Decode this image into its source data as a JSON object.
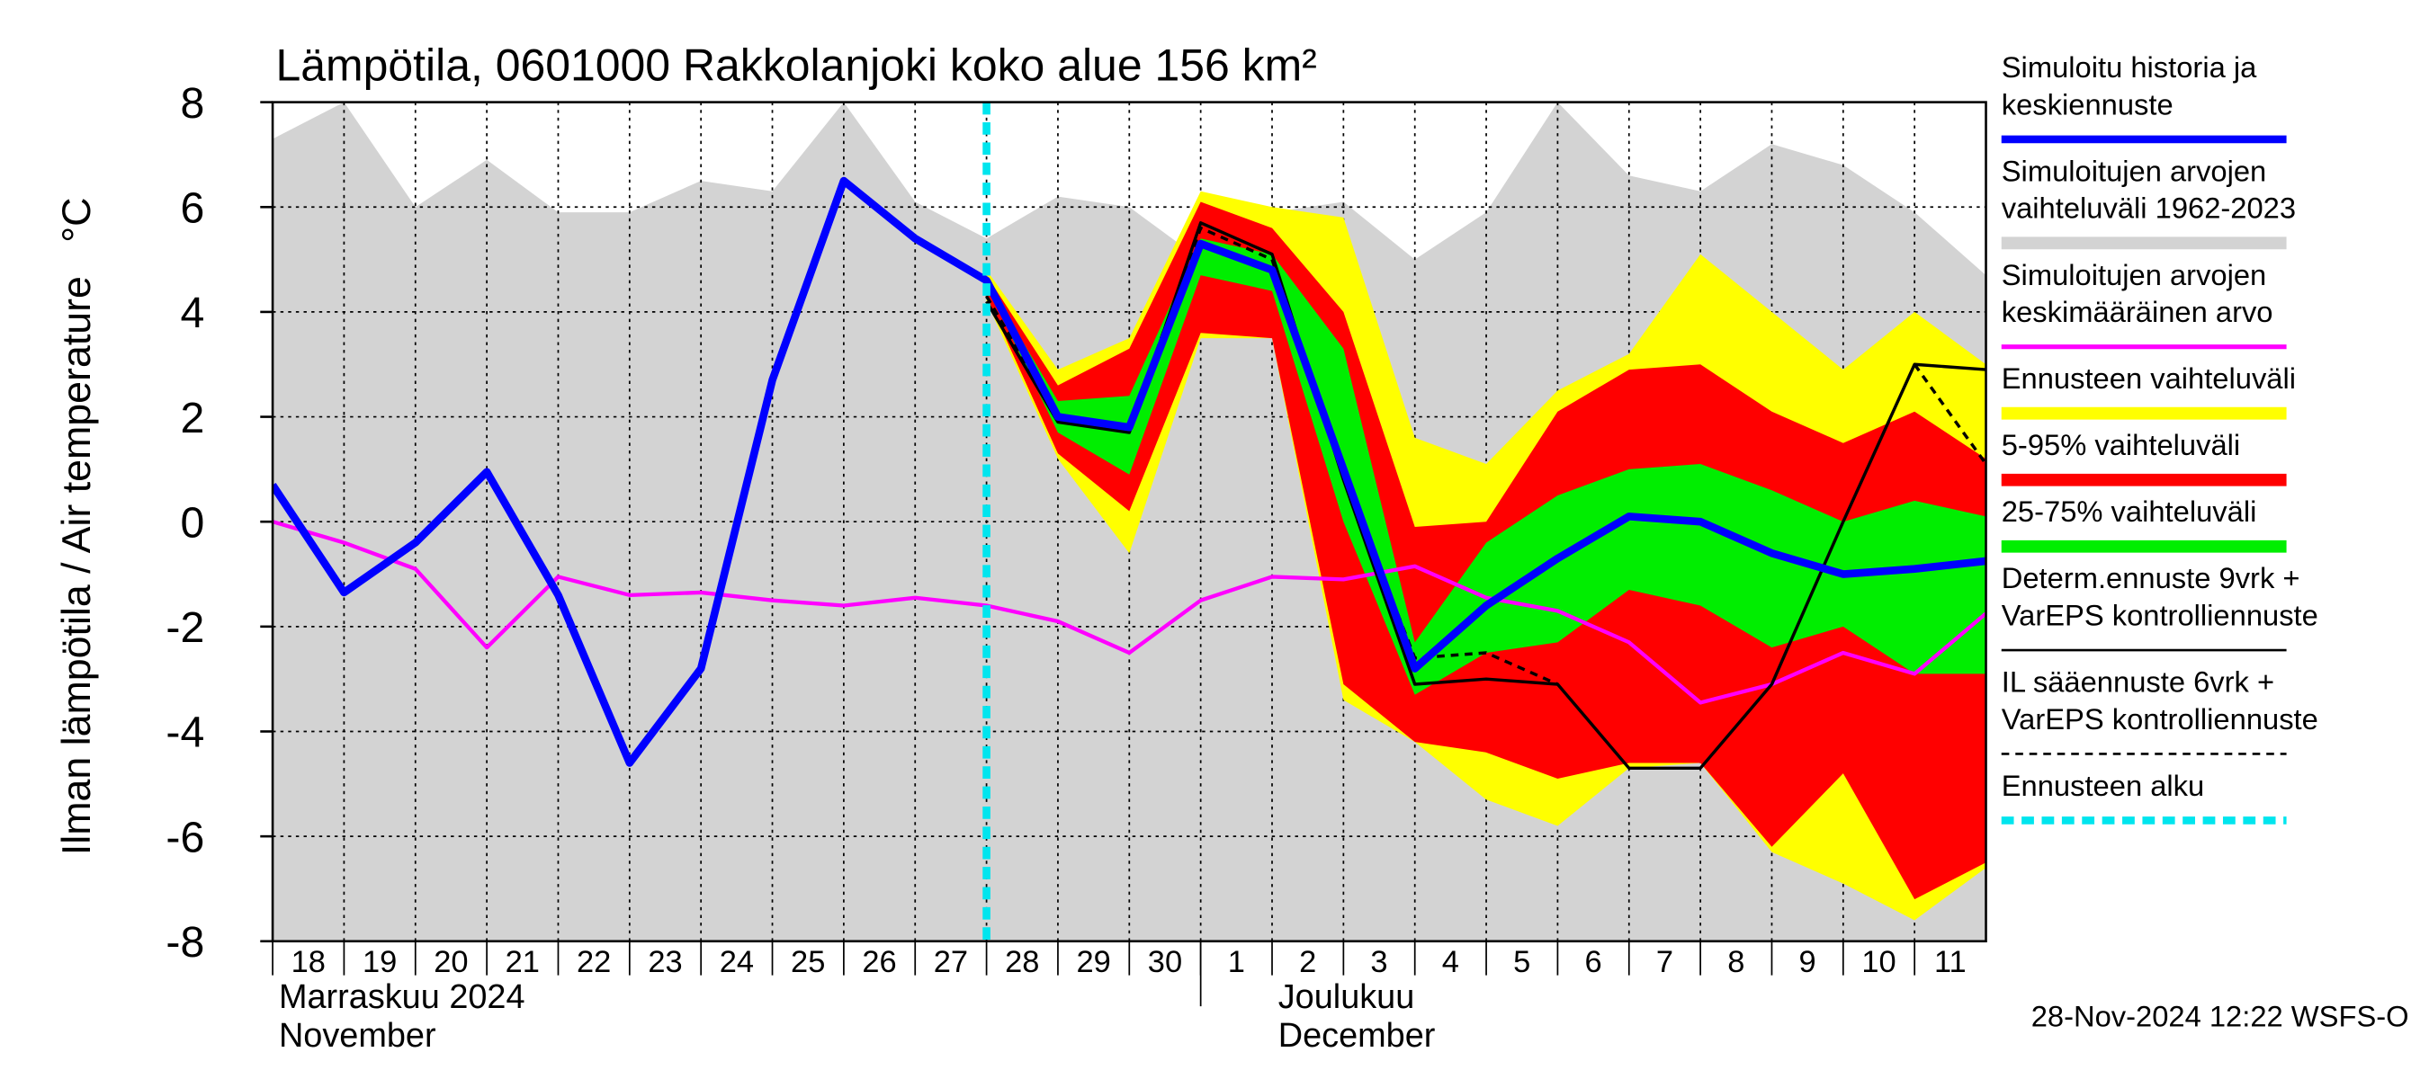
{
  "chart_data": {
    "type": "line",
    "title": "Lämpötila, 0601000 Rakkolanjoki koko alue 156 km²",
    "ylabel": "Ilman lämpötila / Air temperature   °C",
    "footer": "28-Nov-2024 12:22 WSFS-O",
    "ylim": [
      -8,
      8
    ],
    "yticks": [
      -8,
      -6,
      -4,
      -2,
      0,
      2,
      4,
      6,
      8
    ],
    "xlim": [
      "2024-11-18",
      "2024-12-12"
    ],
    "xticks": [
      {
        "value": "2024-11-18",
        "label": "18"
      },
      {
        "value": "2024-11-19",
        "label": "19"
      },
      {
        "value": "2024-11-20",
        "label": "20"
      },
      {
        "value": "2024-11-21",
        "label": "21"
      },
      {
        "value": "2024-11-22",
        "label": "22"
      },
      {
        "value": "2024-11-23",
        "label": "23"
      },
      {
        "value": "2024-11-24",
        "label": "24"
      },
      {
        "value": "2024-11-25",
        "label": "25"
      },
      {
        "value": "2024-11-26",
        "label": "26"
      },
      {
        "value": "2024-11-27",
        "label": "27"
      },
      {
        "value": "2024-11-28",
        "label": "28"
      },
      {
        "value": "2024-11-29",
        "label": "29"
      },
      {
        "value": "2024-11-30",
        "label": "30"
      },
      {
        "value": "2024-12-01",
        "label": "1"
      },
      {
        "value": "2024-12-02",
        "label": "2"
      },
      {
        "value": "2024-12-03",
        "label": "3"
      },
      {
        "value": "2024-12-04",
        "label": "4"
      },
      {
        "value": "2024-12-05",
        "label": "5"
      },
      {
        "value": "2024-12-06",
        "label": "6"
      },
      {
        "value": "2024-12-07",
        "label": "7"
      },
      {
        "value": "2024-12-08",
        "label": "8"
      },
      {
        "value": "2024-12-09",
        "label": "9"
      },
      {
        "value": "2024-12-10",
        "label": "10"
      },
      {
        "value": "2024-12-11",
        "label": "11"
      }
    ],
    "months": [
      {
        "start": "2024-11-18",
        "labels": [
          "Marraskuu 2024",
          "November"
        ]
      },
      {
        "start": "2024-12-01",
        "labels": [
          "Joulukuu",
          "December"
        ]
      }
    ],
    "grid": true,
    "x": [
      "2024-11-18",
      "2024-11-19",
      "2024-11-20",
      "2024-11-21",
      "2024-11-22",
      "2024-11-23",
      "2024-11-24",
      "2024-11-25",
      "2024-11-26",
      "2024-11-27",
      "2024-11-28",
      "2024-11-29",
      "2024-11-30",
      "2024-12-01",
      "2024-12-02",
      "2024-12-03",
      "2024-12-04",
      "2024-12-05",
      "2024-12-06",
      "2024-12-07",
      "2024-12-08",
      "2024-12-09",
      "2024-12-10",
      "2024-12-11",
      "2024-12-12"
    ],
    "series": [
      {
        "name": [
          "Simuloitu historia ja",
          "keskiennuste"
        ],
        "kind": "line",
        "color": "#0000ff",
        "width": 5,
        "values": [
          0.7,
          -1.35,
          -0.4,
          0.95,
          -1.4,
          -4.6,
          -2.8,
          2.7,
          6.5,
          5.4,
          4.6,
          2.0,
          1.8,
          5.3,
          4.8,
          1.0,
          -2.8,
          -1.6,
          -0.7,
          0.1,
          0.0,
          -0.6,
          -1.0,
          -0.9,
          -0.75
        ]
      },
      {
        "name": [
          "Simuloitujen arvojen",
          "vaihteluväli 1962-2023"
        ],
        "kind": "band",
        "color": "#d3d3d3",
        "upper": [
          7.3,
          8.0,
          6.0,
          6.9,
          5.9,
          5.9,
          6.5,
          6.3,
          8.0,
          6.1,
          5.4,
          6.2,
          6.0,
          5.0,
          5.9,
          6.1,
          5.0,
          5.9,
          8.0,
          6.6,
          6.3,
          7.2,
          6.8,
          5.9,
          4.7
        ],
        "lower": [
          -8,
          -8,
          -8,
          -8,
          -8,
          -8,
          -8,
          -8,
          -8,
          -8,
          -8,
          -8,
          -8,
          -8,
          -8,
          -8,
          -8,
          -8,
          -8,
          -8,
          -8,
          -8,
          -8,
          -8,
          -8
        ]
      },
      {
        "name": [
          "Simuloitujen arvojen",
          "keskimääräinen arvo"
        ],
        "kind": "line",
        "color": "#ff00ff",
        "width": 2.5,
        "values": [
          0.0,
          -0.4,
          -0.9,
          -2.4,
          -1.05,
          -1.4,
          -1.35,
          -1.5,
          -1.6,
          -1.45,
          -1.6,
          -1.9,
          -2.5,
          -1.5,
          -1.05,
          -1.1,
          -0.85,
          -1.45,
          -1.7,
          -2.3,
          -3.45,
          -3.1,
          -2.5,
          -2.9,
          -1.75
        ]
      },
      {
        "name": [
          "Ennusteen vaihteluväli"
        ],
        "kind": "band",
        "color": "#ffff00",
        "upper": [
          null,
          null,
          null,
          null,
          null,
          null,
          null,
          null,
          null,
          null,
          4.8,
          2.9,
          3.5,
          6.3,
          6.0,
          5.8,
          1.6,
          1.1,
          2.5,
          3.2,
          5.1,
          4.0,
          2.9,
          4.0,
          3.0
        ],
        "lower": [
          null,
          null,
          null,
          null,
          null,
          null,
          null,
          null,
          null,
          null,
          4.2,
          1.2,
          -0.6,
          3.5,
          3.5,
          -3.4,
          -4.2,
          -5.3,
          -5.8,
          -4.7,
          -4.6,
          -6.3,
          -6.9,
          -7.6,
          -6.6
        ]
      },
      {
        "name": [
          "5-95% vaihteluväli"
        ],
        "kind": "band",
        "color": "#ff0000",
        "upper": [
          null,
          null,
          null,
          null,
          null,
          null,
          null,
          null,
          null,
          null,
          4.7,
          2.6,
          3.3,
          6.1,
          5.6,
          4.0,
          -0.1,
          0.0,
          2.1,
          2.9,
          3.0,
          2.1,
          1.5,
          2.1,
          1.2
        ],
        "lower": [
          null,
          null,
          null,
          null,
          null,
          null,
          null,
          null,
          null,
          null,
          4.3,
          1.3,
          0.2,
          3.6,
          3.5,
          -3.1,
          -4.2,
          -4.4,
          -4.9,
          -4.6,
          -4.6,
          -6.2,
          -4.8,
          -7.2,
          -6.5
        ]
      },
      {
        "name": [
          "25-75% vaihteluväli"
        ],
        "kind": "band",
        "color": "#00ee00",
        "upper": [
          null,
          null,
          null,
          null,
          null,
          null,
          null,
          null,
          null,
          null,
          4.6,
          2.3,
          2.4,
          5.4,
          5.1,
          3.3,
          -2.3,
          -0.4,
          0.5,
          1.0,
          1.1,
          0.6,
          0.0,
          0.4,
          0.1
        ],
        "lower": [
          null,
          null,
          null,
          null,
          null,
          null,
          null,
          null,
          null,
          null,
          4.5,
          1.7,
          0.9,
          4.7,
          4.4,
          0.0,
          -3.3,
          -2.5,
          -2.3,
          -1.3,
          -1.6,
          -2.4,
          -2.0,
          -2.9,
          -2.9
        ]
      },
      {
        "name": [
          "Determ.ennuste 9vrk +",
          "VarEPS kontrolliennuste"
        ],
        "kind": "line",
        "color": "#000000",
        "width": 2,
        "values": [
          null,
          null,
          null,
          null,
          null,
          null,
          null,
          null,
          null,
          null,
          4.2,
          1.9,
          1.7,
          5.7,
          5.1,
          0.8,
          -3.1,
          -3.0,
          -3.1,
          -4.7,
          -4.7,
          -3.1,
          0.0,
          3.0,
          2.9
        ]
      },
      {
        "name": [
          "IL sääennuste 6vrk  +",
          "  VarEPS kontrolliennuste"
        ],
        "kind": "line",
        "color": "#000000",
        "width": 2,
        "dashed": true,
        "values": [
          null,
          null,
          null,
          null,
          null,
          null,
          null,
          null,
          null,
          null,
          4.3,
          2.0,
          1.8,
          5.6,
          5.0,
          0.9,
          -2.6,
          -2.5,
          -3.1,
          null,
          null,
          null,
          null,
          3.0,
          1.1
        ]
      }
    ],
    "draw_order": [
      1,
      3,
      4,
      5,
      2,
      6,
      7,
      0
    ],
    "forecast_start": {
      "name": "Ennusteen alku",
      "x": "2024-11-28",
      "color": "#00e5ee"
    }
  }
}
